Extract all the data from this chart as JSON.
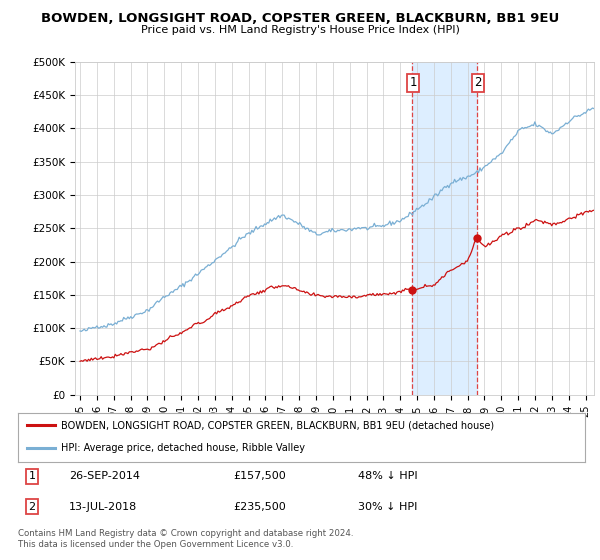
{
  "title": "BOWDEN, LONGSIGHT ROAD, COPSTER GREEN, BLACKBURN, BB1 9EU",
  "subtitle": "Price paid vs. HM Land Registry's House Price Index (HPI)",
  "ylim": [
    0,
    500000
  ],
  "yticks": [
    0,
    50000,
    100000,
    150000,
    200000,
    250000,
    300000,
    350000,
    400000,
    450000,
    500000
  ],
  "ytick_labels": [
    "£0",
    "£50K",
    "£100K",
    "£150K",
    "£200K",
    "£250K",
    "£300K",
    "£350K",
    "£400K",
    "£450K",
    "£500K"
  ],
  "hpi_color": "#7aafd4",
  "price_color": "#cc1111",
  "marker1_price": 157500,
  "marker2_price": 235500,
  "legend_line1": "BOWDEN, LONGSIGHT ROAD, COPSTER GREEN, BLACKBURN, BB1 9EU (detached house)",
  "legend_line2": "HPI: Average price, detached house, Ribble Valley",
  "table_row1": [
    "1",
    "26-SEP-2014",
    "£157,500",
    "48% ↓ HPI"
  ],
  "table_row2": [
    "2",
    "13-JUL-2018",
    "£235,500",
    "30% ↓ HPI"
  ],
  "footnote": "Contains HM Land Registry data © Crown copyright and database right 2024.\nThis data is licensed under the Open Government Licence v3.0.",
  "highlight_color": "#ddeeff",
  "vline_color": "#dd4444",
  "background_color": "#ffffff",
  "grid_color": "#cccccc"
}
